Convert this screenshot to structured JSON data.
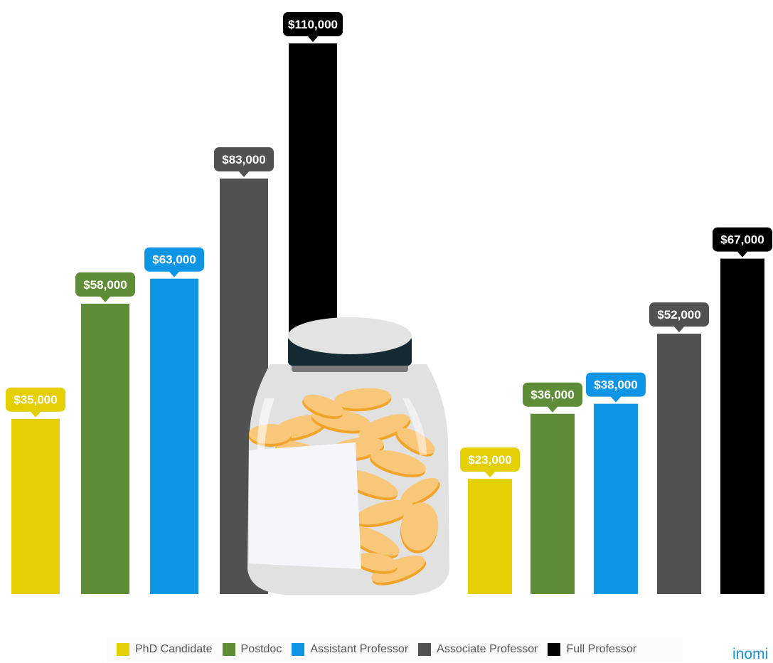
{
  "chart_data": {
    "type": "bar",
    "groups": [
      {
        "values": [
          35000,
          58000,
          63000,
          83000,
          110000
        ],
        "labels": [
          "$35,000",
          "$58,000",
          "$63,000",
          "$83,000",
          "$110,000"
        ]
      },
      {
        "values": [
          23000,
          36000,
          38000,
          52000,
          67000
        ],
        "labels": [
          "$23,000",
          "$36,000",
          "$38,000",
          "$52,000",
          "$67,000"
        ]
      }
    ],
    "series": [
      {
        "name": "PhD Candidate",
        "color": "#e3cf03"
      },
      {
        "name": "Postdoc",
        "color": "#5f8c36"
      },
      {
        "name": "Assistant Professor",
        "color": "#0f95e6"
      },
      {
        "name": "Associate Professor",
        "color": "#515151"
      },
      {
        "name": "Full Professor",
        "color": "#000000"
      }
    ],
    "legend_position": "bottom",
    "grid": false,
    "ylim": [
      0,
      110000
    ]
  },
  "brand": "inomi",
  "illustration": "coin-jar-icon"
}
